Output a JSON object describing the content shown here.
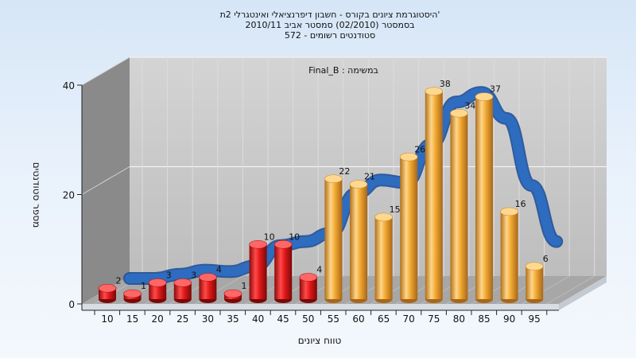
{
  "chart_data": {
    "type": "bar",
    "title_lines": [
      "היסטוגרמת ציונים בקורס - חשבון דיפרנציאלי ואינטגרלי 2ת'",
      "בסמסטר  (02/2010)  סמסטר אביב 2010/11",
      "סטודנטים רשומים - 572"
    ],
    "annotation": "Final_B : במשימה",
    "xlabel": "טווח ציונים",
    "ylabel": "מספר סטודנטים",
    "categories": [
      "10",
      "15",
      "20",
      "25",
      "30",
      "35",
      "40",
      "45",
      "50",
      "55",
      "60",
      "65",
      "70",
      "75",
      "80",
      "85",
      "90",
      "95"
    ],
    "values": [
      2,
      1,
      3,
      3,
      4,
      1,
      10,
      10,
      4,
      22,
      21,
      15,
      26,
      38,
      34,
      37,
      16,
      6
    ],
    "ylim": [
      0,
      40
    ],
    "yticks": [
      0,
      20,
      40
    ],
    "grid": true,
    "colors": {
      "low_bars": "#e02020",
      "high_bars": "#f0a830",
      "trend": "#2e6cc0",
      "back_wall": "#c9c9c9",
      "side_wall": "#8a8a8a"
    },
    "pass_threshold_category": "55"
  }
}
